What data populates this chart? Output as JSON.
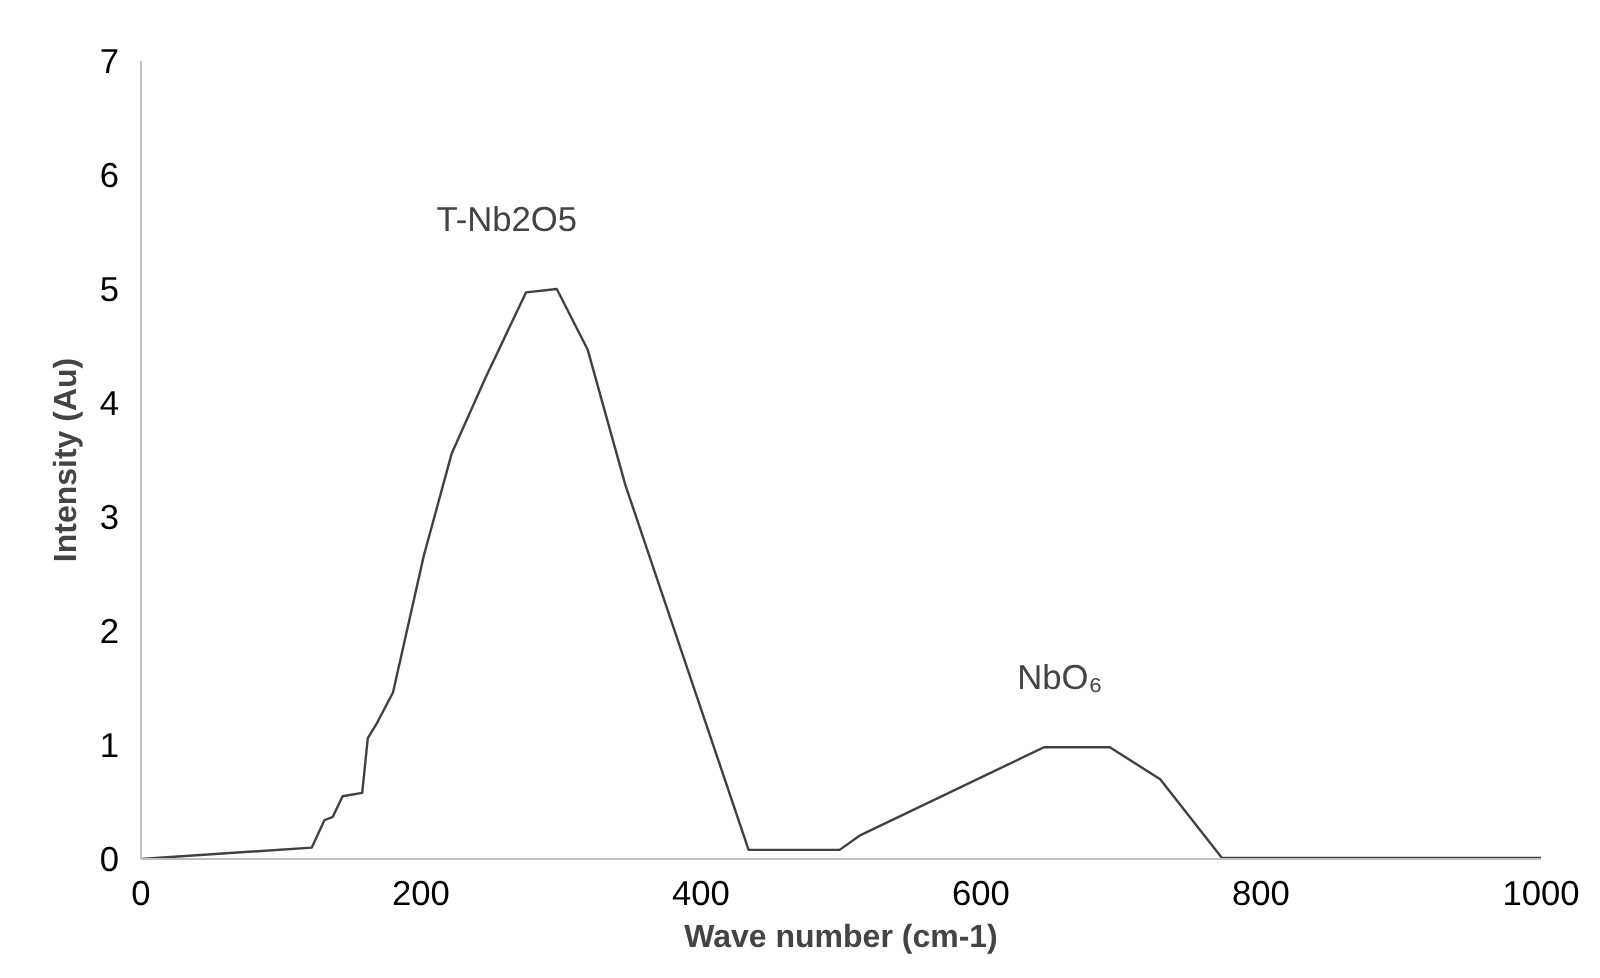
{
  "chart_data": {
    "type": "line",
    "xlabel": "Wave number (cm-1)",
    "ylabel": "Intensity (Au)",
    "x": [
      0,
      122,
      131,
      137,
      144,
      158,
      162,
      168,
      180,
      202,
      222,
      246,
      275,
      297,
      319,
      346,
      434,
      499,
      514,
      645,
      692,
      728,
      772,
      1000
    ],
    "series": [
      {
        "color": "#404040",
        "values": [
          0,
          0.1,
          0.34,
          0.37,
          0.55,
          0.58,
          1.06,
          1.18,
          1.46,
          2.66,
          3.56,
          4.22,
          4.97,
          5.0,
          4.47,
          3.28,
          0.08,
          0.08,
          0.21,
          0.98,
          0.98,
          0.7,
          0.01,
          0.01
        ]
      }
    ],
    "xlim": [
      0,
      1000
    ],
    "xticks": [
      0,
      200,
      400,
      600,
      800,
      1000
    ],
    "ylim": [
      0,
      7
    ],
    "yticks": [
      0,
      1,
      2,
      3,
      4,
      5,
      6,
      7
    ],
    "annotations": [
      "T-Nb2O5",
      "NbO₆"
    ],
    "grid": false,
    "marker": "none",
    "line_style": "solid"
  }
}
